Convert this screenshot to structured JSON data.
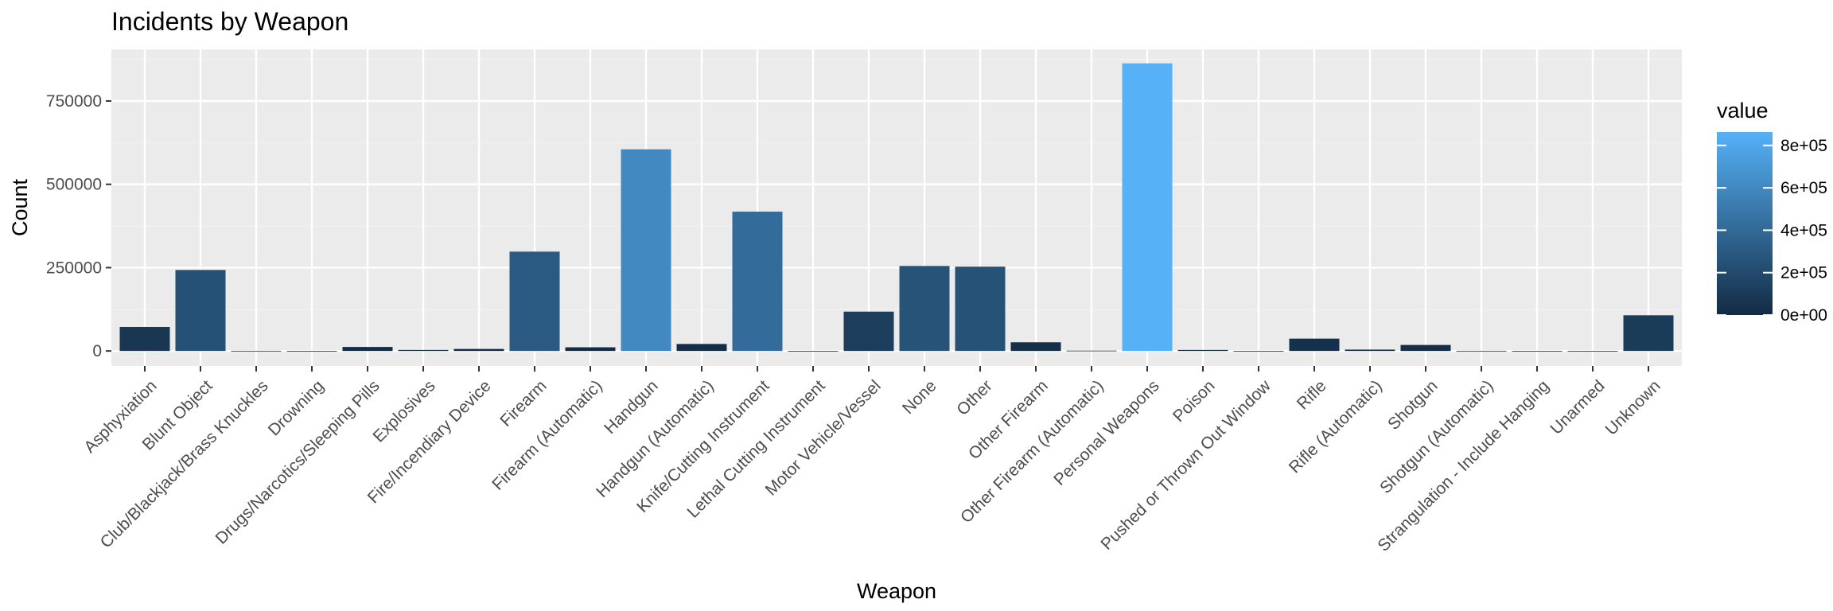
{
  "chart_data": {
    "type": "bar",
    "title": "Incidents by Weapon",
    "xlabel": "Weapon",
    "ylabel": "Count",
    "categories": [
      "Asphyxiation",
      "Blunt Object",
      "Club/Blackjack/Brass Knuckles",
      "Drowning",
      "Drugs/Narcotics/Sleeping Pills",
      "Explosives",
      "Fire/Incendiary Device",
      "Firearm",
      "Firearm (Automatic)",
      "Handgun",
      "Handgun (Automatic)",
      "Knife/Cutting Instrument",
      "Lethal Cutting Instrument",
      "Motor Vehicle/Vessel",
      "None",
      "Other",
      "Other Firearm",
      "Other Firearm (Automatic)",
      "Personal Weapons",
      "Poison",
      "Pushed or Thrown Out Window",
      "Rifle",
      "Rifle (Automatic)",
      "Shotgun",
      "Shotgun (Automatic)",
      "Strangulation - Include Hanging",
      "Unarmed",
      "Unknown"
    ],
    "values": [
      72000,
      243000,
      500,
      300,
      12000,
      3000,
      6000,
      298000,
      11000,
      605000,
      21000,
      418000,
      200,
      118000,
      255000,
      253000,
      26000,
      1000,
      863000,
      3000,
      200,
      37000,
      4000,
      18000,
      500,
      200,
      200,
      107000
    ],
    "ylim": [
      -45000,
      905000
    ],
    "yticks": [
      0,
      250000,
      500000,
      750000
    ],
    "ytick_labels": [
      "0",
      "250000",
      "500000",
      "750000"
    ],
    "grid": true,
    "legend": {
      "title": "value",
      "position": "right",
      "type": "colorbar",
      "range": [
        0,
        863000
      ],
      "ticks": [
        0,
        200000,
        400000,
        600000,
        800000
      ],
      "tick_labels": [
        "0e+00",
        "2e+05",
        "4e+05",
        "6e+05",
        "8e+05"
      ]
    },
    "colors": {
      "low": "#132B43",
      "high": "#56B1F7",
      "panel_background": "#EBEBEB",
      "grid_major": "#FFFFFF",
      "grid_minor": "#F2F2F2"
    }
  }
}
